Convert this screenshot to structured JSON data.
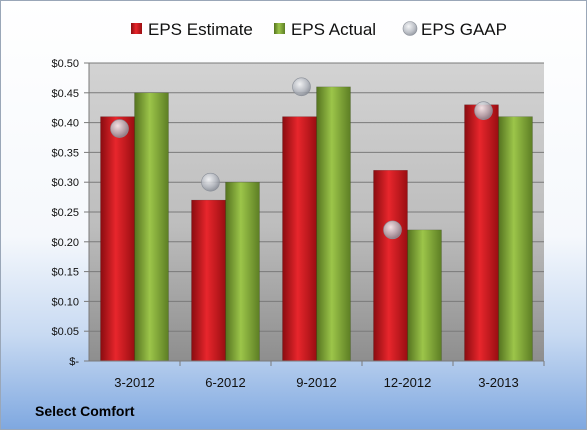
{
  "chart_data": {
    "type": "bar",
    "categories": [
      "3-2012",
      "6-2012",
      "9-2012",
      "12-2012",
      "3-2013"
    ],
    "series": [
      {
        "name": "EPS Estimate",
        "values": [
          0.41,
          0.27,
          0.41,
          0.32,
          0.43
        ],
        "color": "#c8141a"
      },
      {
        "name": "EPS Actual",
        "values": [
          0.45,
          0.3,
          0.46,
          0.22,
          0.41
        ],
        "color": "#7ea634"
      },
      {
        "name": "EPS GAAP",
        "values": [
          0.39,
          0.3,
          0.46,
          0.22,
          0.42
        ],
        "color": "#c9ccd2",
        "marker": "circle"
      }
    ],
    "yticks": [
      "$-",
      "$0.05",
      "$0.10",
      "$0.15",
      "$0.20",
      "$0.25",
      "$0.30",
      "$0.35",
      "$0.40",
      "$0.45",
      "$0.50"
    ],
    "ylim": [
      0,
      0.5
    ],
    "grid": true,
    "legend_position": "top"
  },
  "footer": {
    "company": "Select Comfort"
  }
}
